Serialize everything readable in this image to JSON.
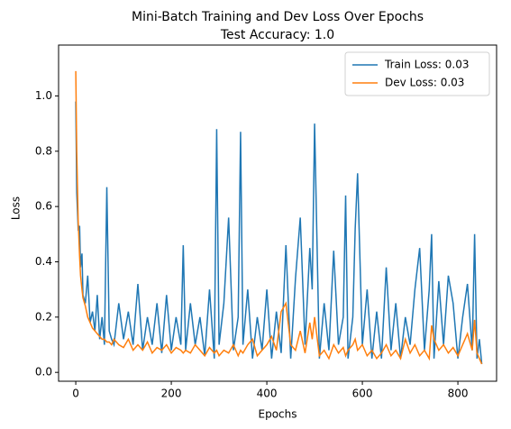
{
  "chart_data": {
    "type": "line",
    "title": "Mini-Batch Training and Dev Loss Over Epochs",
    "subtitle": "Test Accuracy: 1.0",
    "xlabel": "Epochs",
    "ylabel": "Loss",
    "x": [
      0,
      2,
      5,
      8,
      10,
      13,
      15,
      20,
      25,
      30,
      35,
      40,
      45,
      50,
      55,
      60,
      65,
      70,
      75,
      80,
      90,
      100,
      110,
      120,
      130,
      140,
      150,
      160,
      170,
      180,
      190,
      200,
      210,
      220,
      225,
      230,
      240,
      250,
      260,
      270,
      280,
      290,
      295,
      300,
      310,
      320,
      330,
      340,
      345,
      350,
      360,
      370,
      380,
      390,
      400,
      410,
      420,
      430,
      440,
      450,
      460,
      470,
      480,
      490,
      495,
      500,
      510,
      520,
      530,
      540,
      550,
      560,
      565,
      570,
      580,
      585,
      590,
      600,
      610,
      620,
      630,
      640,
      650,
      660,
      670,
      680,
      690,
      700,
      710,
      720,
      730,
      740,
      745,
      750,
      760,
      770,
      780,
      790,
      800,
      810,
      820,
      830,
      835,
      840,
      845,
      850
    ],
    "series": [
      {
        "name": "Train Loss: 0.03",
        "color": "#1f77b4",
        "values": [
          0.98,
          0.65,
          0.52,
          0.53,
          0.38,
          0.43,
          0.28,
          0.25,
          0.35,
          0.18,
          0.22,
          0.15,
          0.28,
          0.12,
          0.2,
          0.1,
          0.67,
          0.15,
          0.12,
          0.1,
          0.25,
          0.12,
          0.22,
          0.1,
          0.32,
          0.08,
          0.2,
          0.1,
          0.25,
          0.07,
          0.28,
          0.08,
          0.2,
          0.1,
          0.46,
          0.08,
          0.25,
          0.1,
          0.2,
          0.06,
          0.3,
          0.05,
          0.88,
          0.1,
          0.25,
          0.56,
          0.08,
          0.2,
          0.87,
          0.1,
          0.3,
          0.05,
          0.2,
          0.08,
          0.3,
          0.05,
          0.22,
          0.07,
          0.46,
          0.05,
          0.34,
          0.56,
          0.1,
          0.45,
          0.3,
          0.9,
          0.05,
          0.25,
          0.08,
          0.44,
          0.1,
          0.2,
          0.64,
          0.05,
          0.2,
          0.52,
          0.72,
          0.1,
          0.3,
          0.05,
          0.22,
          0.05,
          0.38,
          0.08,
          0.25,
          0.05,
          0.2,
          0.1,
          0.3,
          0.45,
          0.08,
          0.3,
          0.5,
          0.05,
          0.33,
          0.1,
          0.35,
          0.25,
          0.05,
          0.2,
          0.32,
          0.08,
          0.5,
          0.05,
          0.12,
          0.03
        ]
      },
      {
        "name": "Dev Loss: 0.03",
        "color": "#ff7f0e",
        "values": [
          1.09,
          0.8,
          0.55,
          0.42,
          0.35,
          0.3,
          0.27,
          0.24,
          0.2,
          0.18,
          0.16,
          0.15,
          0.14,
          0.13,
          0.12,
          0.12,
          0.11,
          0.11,
          0.1,
          0.12,
          0.1,
          0.09,
          0.12,
          0.08,
          0.1,
          0.08,
          0.11,
          0.07,
          0.09,
          0.08,
          0.1,
          0.07,
          0.09,
          0.08,
          0.07,
          0.08,
          0.07,
          0.1,
          0.08,
          0.06,
          0.09,
          0.07,
          0.08,
          0.06,
          0.08,
          0.07,
          0.1,
          0.06,
          0.08,
          0.07,
          0.1,
          0.12,
          0.06,
          0.08,
          0.1,
          0.13,
          0.08,
          0.22,
          0.25,
          0.1,
          0.08,
          0.15,
          0.07,
          0.18,
          0.12,
          0.2,
          0.06,
          0.08,
          0.05,
          0.1,
          0.07,
          0.09,
          0.06,
          0.08,
          0.1,
          0.12,
          0.08,
          0.1,
          0.06,
          0.08,
          0.05,
          0.07,
          0.1,
          0.06,
          0.08,
          0.05,
          0.12,
          0.07,
          0.1,
          0.06,
          0.08,
          0.05,
          0.17,
          0.12,
          0.08,
          0.1,
          0.07,
          0.09,
          0.06,
          0.1,
          0.14,
          0.08,
          0.19,
          0.07,
          0.05,
          0.03
        ]
      }
    ],
    "xlim": [
      -36,
      881
    ],
    "xticks": [
      0,
      200,
      400,
      600,
      800
    ],
    "ylim": [
      -0.032,
      1.184
    ],
    "yticks": [
      {
        "value": 0,
        "label": "0.0"
      },
      0.2,
      0.4,
      0.6,
      0.8,
      {
        "value": 1,
        "label": "1.0"
      }
    ],
    "legend": "upper right"
  }
}
